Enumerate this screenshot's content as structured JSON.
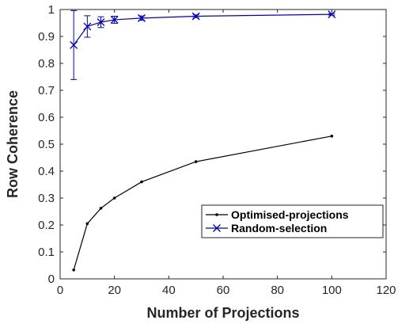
{
  "chart_data": {
    "type": "line",
    "xlabel": "Number of Projections",
    "ylabel": "Row Coherence",
    "xlim": [
      0,
      120
    ],
    "ylim": [
      0,
      1
    ],
    "xticks": [
      0,
      20,
      40,
      60,
      80,
      100,
      120
    ],
    "yticks": [
      0,
      0.1,
      0.2,
      0.3,
      0.4,
      0.5,
      0.6,
      0.7,
      0.8,
      0.9,
      1
    ],
    "grid": false,
    "legend_position": "bottom-right",
    "series": [
      {
        "name": "Optimised-projections",
        "color": "#000000",
        "marker": "dot",
        "x": [
          5,
          10,
          15,
          20,
          30,
          50,
          100
        ],
        "y": [
          0.033,
          0.205,
          0.262,
          0.3,
          0.36,
          0.435,
          0.53
        ]
      },
      {
        "name": "Random-selection",
        "color": "#0000cc",
        "marker": "x",
        "x": [
          5,
          10,
          15,
          20,
          30,
          50,
          100
        ],
        "y": [
          0.868,
          0.937,
          0.953,
          0.962,
          0.968,
          0.975,
          0.982
        ],
        "error": [
          0.128,
          0.04,
          0.02,
          0.013,
          0.008,
          0.005,
          0.003
        ]
      }
    ]
  }
}
